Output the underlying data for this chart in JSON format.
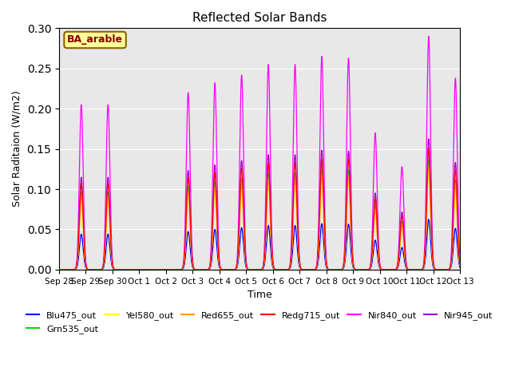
{
  "title": "Reflected Solar Bands",
  "xlabel": "Time",
  "ylabel": "Solar Raditaion (W/m2)",
  "annotation": "BA_arable",
  "ylim": [
    0,
    0.3
  ],
  "xlim": [
    0,
    15
  ],
  "background_color": "#e8e8e8",
  "grid_color": "#ffffff",
  "band_info": {
    "Blu475_out": {
      "color": "#0000ff",
      "zorder": 3
    },
    "Grn535_out": {
      "color": "#00dd00",
      "zorder": 4
    },
    "Yel580_out": {
      "color": "#ffff00",
      "zorder": 5
    },
    "Red655_out": {
      "color": "#ff9900",
      "zorder": 6
    },
    "Redg715_out": {
      "color": "#ff0000",
      "zorder": 7
    },
    "Nir840_out": {
      "color": "#ff00ff",
      "zorder": 2
    },
    "Nir945_out": {
      "color": "#9900cc",
      "zorder": 2
    }
  },
  "nir840_peaks": [
    [
      0.83,
      0.205
    ],
    [
      1.83,
      0.205
    ],
    [
      4.83,
      0.22
    ],
    [
      5.83,
      0.232
    ],
    [
      6.83,
      0.242
    ],
    [
      7.83,
      0.255
    ],
    [
      8.83,
      0.255
    ],
    [
      9.83,
      0.265
    ],
    [
      10.83,
      0.263
    ],
    [
      11.83,
      0.17
    ],
    [
      12.83,
      0.128
    ],
    [
      13.83,
      0.29
    ],
    [
      14.83,
      0.238
    ]
  ],
  "band_peak_fraction": {
    "Blu475_out": 0.215,
    "Grn535_out": 0.47,
    "Yel580_out": 0.41,
    "Red655_out": 0.44,
    "Redg715_out": 0.52,
    "Nir840_out": 1.0,
    "Nir945_out": 0.56
  },
  "sigma": 0.07,
  "tick_labels": [
    "Sep 28",
    "Sep 29",
    "Sep 30",
    "Oct 1",
    "Oct 2",
    "Oct 3",
    "Oct 4",
    "Oct 5",
    "Oct 6",
    "Oct 7",
    "Oct 8",
    "Oct 9",
    "Oct 10",
    "Oct 11",
    "Oct 12",
    "Oct 13"
  ]
}
